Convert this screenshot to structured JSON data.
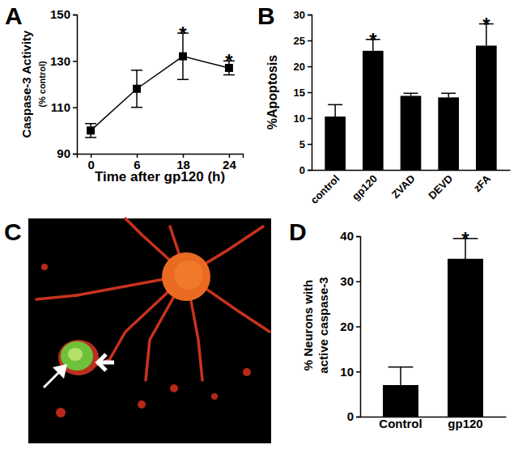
{
  "chart_data": [
    {
      "type": "line",
      "title": "A",
      "categories": [
        "0",
        "6",
        "18",
        "24"
      ],
      "values": [
        100,
        118,
        132,
        127
      ],
      "errors": [
        3,
        8,
        10,
        3
      ],
      "significance_labels": [
        null,
        null,
        "*",
        "*"
      ],
      "color": "#000000",
      "marker": "square",
      "xlabel": "Time after gp120 (h)",
      "ylabel": [
        "Caspase-3 Activity",
        "(% control)"
      ],
      "ylim": [
        90,
        150
      ],
      "yticks": [
        90,
        110,
        130,
        150
      ]
    },
    {
      "type": "bar",
      "title": "B",
      "categories": [
        "control",
        "gp120",
        "ZVAD",
        "DEVD",
        "zFA"
      ],
      "values": [
        10.3,
        23,
        14.3,
        14,
        24
      ],
      "errors": [
        2.3,
        2.2,
        0.5,
        0.8,
        4.2
      ],
      "significance_labels": [
        null,
        "*",
        null,
        null,
        "*"
      ],
      "color": "#000000",
      "ylabel": [
        "%Apoptosis"
      ],
      "ylim": [
        0,
        30
      ],
      "yticks": [
        0,
        5,
        10,
        15,
        20,
        25,
        30
      ]
    },
    {
      "type": "image",
      "title": "C"
    },
    {
      "type": "bar",
      "title": "D",
      "categories": [
        "Control",
        "gp120"
      ],
      "values": [
        7,
        35
      ],
      "errors": [
        4,
        4.5
      ],
      "significance_labels": [
        null,
        "*"
      ],
      "color": "#000000",
      "ylabel": [
        "% Neurons with",
        "active caspase-3"
      ],
      "ylim": [
        0,
        40
      ],
      "yticks": [
        0,
        10,
        20,
        30,
        40
      ]
    }
  ]
}
